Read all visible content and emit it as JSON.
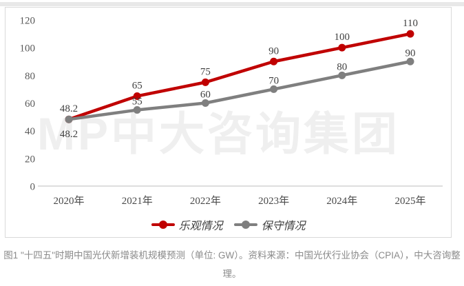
{
  "watermark": "MP中大咨询集团",
  "chart_data": {
    "type": "line",
    "categories": [
      "2020年",
      "2021年",
      "2022年",
      "2023年",
      "2024年",
      "2025年"
    ],
    "series": [
      {
        "name": "乐观情况",
        "color": "#c00000",
        "values": [
          48.2,
          65,
          75,
          90,
          100,
          110
        ]
      },
      {
        "name": "保守情况",
        "color": "#7f7f7f",
        "values": [
          48.2,
          55,
          60,
          70,
          80,
          90
        ]
      }
    ],
    "ylim": [
      0,
      120
    ],
    "yticks": [
      0,
      20,
      40,
      60,
      80,
      100,
      120
    ],
    "grid": false,
    "data_labels": true,
    "legend_position": "bottom"
  },
  "caption": {
    "line1": "图1 \"十四五\"时期中国光伏新增装机规模预测（单位: GW）。资料来源：中国光伏行业协会（CPIA），中大咨询整",
    "line2": "理。"
  }
}
